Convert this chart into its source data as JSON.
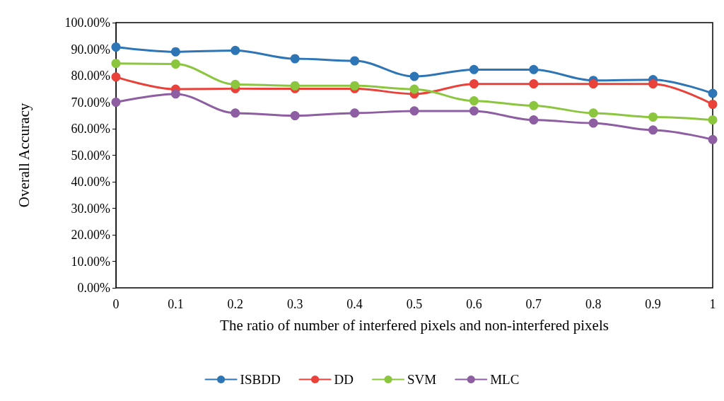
{
  "chart_data": {
    "type": "line",
    "xlabel": "The ratio of number of interfered pixels and non-interfered pixels",
    "ylabel": "Overall Accuracy",
    "categories": [
      "0",
      "0.1",
      "0.2",
      "0.3",
      "0.4",
      "0.5",
      "0.6",
      "0.7",
      "0.8",
      "0.9",
      "1"
    ],
    "ylim": [
      0,
      100
    ],
    "yticks": [
      {
        "value": 0,
        "label": "0.00%"
      },
      {
        "value": 10,
        "label": "10.00%"
      },
      {
        "value": 20,
        "label": "20.00%"
      },
      {
        "value": 30,
        "label": "30.00%"
      },
      {
        "value": 40,
        "label": "40.00%"
      },
      {
        "value": 50,
        "label": "50.00%"
      },
      {
        "value": 60,
        "label": "60.00%"
      },
      {
        "value": 70,
        "label": "70.00%"
      },
      {
        "value": 80,
        "label": "80.00%"
      },
      {
        "value": 90,
        "label": "90.00%"
      },
      {
        "value": 100,
        "label": "100.00%"
      }
    ],
    "series": [
      {
        "name": "ISBDD",
        "color": "#2e75b6",
        "values": [
          90.8,
          89.0,
          89.5,
          86.4,
          85.6,
          79.7,
          82.3,
          82.3,
          78.2,
          78.5,
          73.3
        ]
      },
      {
        "name": "DD",
        "color": "#e8423a",
        "values": [
          79.5,
          74.9,
          75.1,
          75.1,
          75.1,
          73.1,
          76.9,
          76.9,
          76.9,
          76.9,
          69.2
        ]
      },
      {
        "name": "SVM",
        "color": "#8cc63f",
        "values": [
          84.6,
          84.4,
          76.7,
          76.2,
          76.2,
          74.9,
          70.5,
          68.7,
          65.9,
          64.4,
          63.3
        ]
      },
      {
        "name": "MLC",
        "color": "#8e5ea2",
        "values": [
          70.0,
          73.1,
          65.9,
          64.9,
          65.9,
          66.7,
          66.7,
          63.3,
          62.1,
          59.5,
          55.9
        ]
      }
    ],
    "grid": false,
    "legend": "bottom",
    "marker": "circle",
    "line_style": "solid"
  }
}
